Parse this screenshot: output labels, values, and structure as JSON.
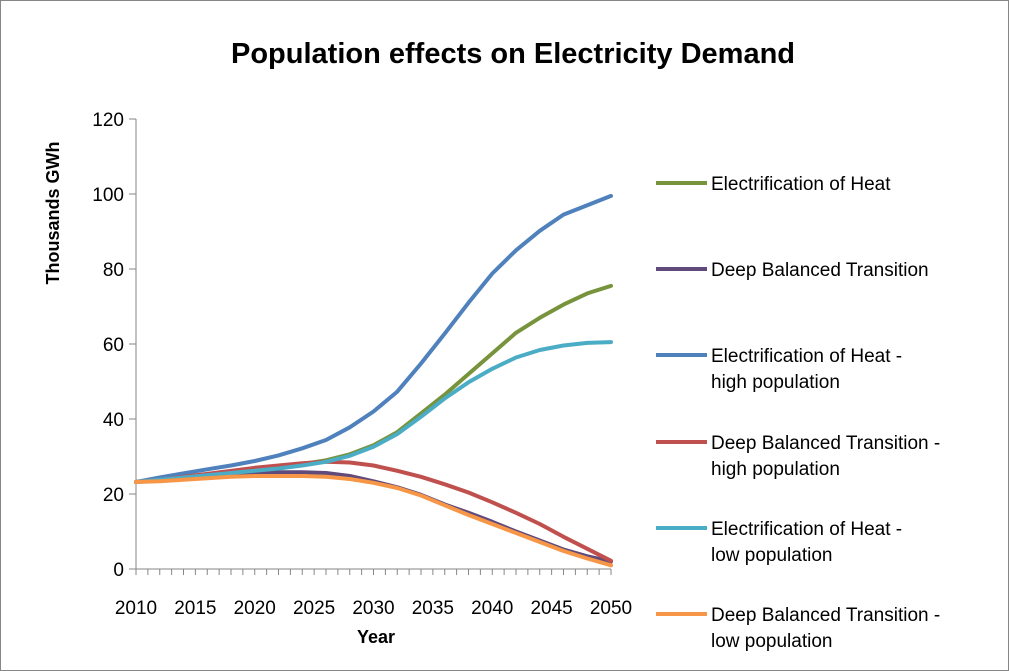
{
  "chart_data": {
    "type": "line",
    "title": "Population effects on Electricity Demand",
    "xlabel": "Year",
    "ylabel": "Thousands GWh",
    "xlim": [
      2010,
      2050
    ],
    "ylim": [
      0,
      120
    ],
    "x_ticks": [
      2010,
      2015,
      2020,
      2025,
      2030,
      2035,
      2040,
      2045,
      2050
    ],
    "y_ticks": [
      0,
      20,
      40,
      60,
      80,
      100,
      120
    ],
    "grid": false,
    "legend_position": "right",
    "x": [
      2010,
      2012,
      2014,
      2016,
      2018,
      2020,
      2022,
      2024,
      2026,
      2028,
      2030,
      2032,
      2034,
      2036,
      2038,
      2040,
      2042,
      2044,
      2046,
      2048,
      2050
    ],
    "series": [
      {
        "name": "Electrification of Heat",
        "legend_lines": [
          "Electrification of Heat"
        ],
        "color": "#77933C",
        "values": [
          23.2,
          24.0,
          24.6,
          25.2,
          25.8,
          26.4,
          27.2,
          28.0,
          29.0,
          30.6,
          33.0,
          36.5,
          41.5,
          46.5,
          52.0,
          57.5,
          63.0,
          67.0,
          70.5,
          73.5,
          75.5
        ]
      },
      {
        "name": "Deep Balanced Transition",
        "legend_lines": [
          "Deep Balanced Transition"
        ],
        "color": "#604A7B",
        "values": [
          23.2,
          23.6,
          24.2,
          24.8,
          25.2,
          25.6,
          25.8,
          25.8,
          25.6,
          24.8,
          23.4,
          21.8,
          19.8,
          17.2,
          15.0,
          12.6,
          10.0,
          7.6,
          5.2,
          3.4,
          2.0
        ]
      },
      {
        "name": "Electrification of Heat - high population",
        "legend_lines": [
          "Electrification of Heat -",
          "high population"
        ],
        "color": "#4F81BD",
        "values": [
          23.2,
          24.4,
          25.5,
          26.6,
          27.6,
          28.8,
          30.3,
          32.2,
          34.4,
          37.8,
          42.0,
          47.3,
          54.8,
          62.8,
          71.0,
          78.8,
          85.0,
          90.2,
          94.5,
          97.0,
          99.5
        ]
      },
      {
        "name": "Deep Balanced Transition - high population",
        "legend_lines": [
          "Deep Balanced Transition -",
          "high population"
        ],
        "color": "#C0504D",
        "values": [
          23.2,
          23.8,
          24.6,
          25.4,
          26.2,
          27.0,
          27.6,
          28.2,
          28.6,
          28.4,
          27.6,
          26.2,
          24.6,
          22.6,
          20.4,
          17.8,
          15.0,
          12.0,
          8.6,
          5.4,
          2.2
        ]
      },
      {
        "name": "Electrification of Heat - low population",
        "legend_lines": [
          "Electrification of Heat -",
          "low population"
        ],
        "color": "#4BACC6",
        "values": [
          23.2,
          23.8,
          24.4,
          25.0,
          25.6,
          26.2,
          26.8,
          27.6,
          28.6,
          30.2,
          32.6,
          36.0,
          40.6,
          45.5,
          49.8,
          53.4,
          56.4,
          58.4,
          59.6,
          60.3,
          60.5
        ]
      },
      {
        "name": "Deep Balanced Transition - low population",
        "legend_lines": [
          "Deep Balanced Transition -",
          "low population"
        ],
        "color": "#F79646",
        "values": [
          23.2,
          23.4,
          23.8,
          24.2,
          24.6,
          24.8,
          24.8,
          24.8,
          24.6,
          24.0,
          23.0,
          21.6,
          19.6,
          17.0,
          14.4,
          12.0,
          9.6,
          7.2,
          4.8,
          2.8,
          1.0
        ]
      }
    ]
  }
}
